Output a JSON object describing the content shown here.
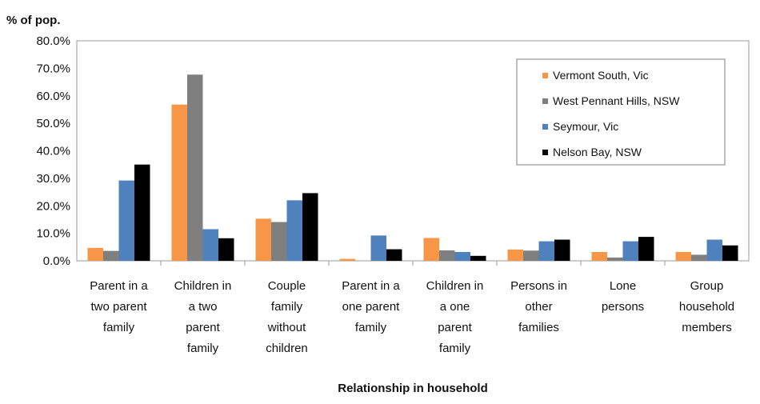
{
  "chart_data": {
    "type": "bar",
    "ylabel": "% of pop.",
    "xlabel": "Relationship in household",
    "ylim": [
      0,
      80
    ],
    "y_ticks": [
      "0.0%",
      "10.0%",
      "20.0%",
      "30.0%",
      "40.0%",
      "50.0%",
      "60.0%",
      "70.0%",
      "80.0%"
    ],
    "grid": false,
    "legend_position": "top-right",
    "categories": [
      [
        "Parent in a",
        "two parent",
        "family"
      ],
      [
        "Children in",
        "a two",
        "parent",
        "family"
      ],
      [
        "Couple",
        "family",
        "without",
        "children"
      ],
      [
        "Parent in a",
        "one parent",
        "family"
      ],
      [
        "Children in",
        "a one",
        "parent",
        "family"
      ],
      [
        "Persons in",
        "other",
        "families"
      ],
      [
        "Lone",
        "persons"
      ],
      [
        "Group",
        "household",
        "members"
      ]
    ],
    "series": [
      {
        "name": "Vermont South, Vic",
        "color": "#F79646",
        "values": [
          4.7,
          56.8,
          15.3,
          0.7,
          8.3,
          4.1,
          3.2,
          3.2
        ]
      },
      {
        "name": "West Pennant Hills, NSW",
        "color": "#7F7F7F",
        "values": [
          3.6,
          67.7,
          14.1,
          0.0,
          3.8,
          3.7,
          1.2,
          2.2
        ]
      },
      {
        "name": "Seymour, Vic",
        "color": "#4F81BD",
        "values": [
          29.2,
          11.5,
          22.0,
          9.2,
          3.2,
          7.1,
          7.1,
          7.7
        ]
      },
      {
        "name": "Nelson Bay, NSW",
        "color": "#000000",
        "values": [
          35.0,
          8.2,
          24.6,
          4.2,
          1.8,
          7.7,
          8.7,
          5.6
        ]
      }
    ]
  }
}
